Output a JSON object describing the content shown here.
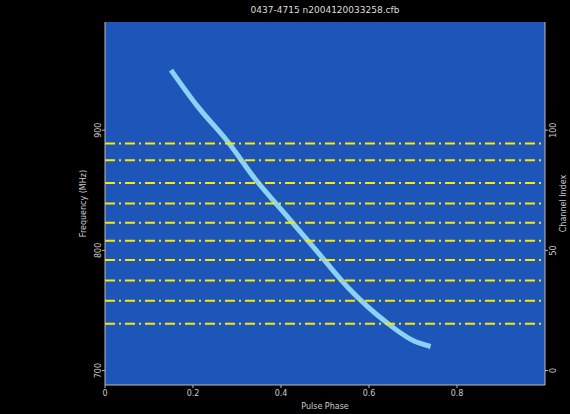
{
  "chart_data": {
    "type": "line",
    "title": "0437-4715 n2004120033258.cfb",
    "x_label": "Pulse Phase",
    "y_label": "Frequency (MHz)",
    "y2_label": "Channel Index",
    "x": [
      0.15,
      0.21,
      0.28,
      0.34,
      0.41,
      0.48,
      0.55,
      0.64,
      0.7,
      0.74
    ],
    "values": [
      950,
      920,
      890,
      860,
      830,
      800,
      770,
      740,
      725,
      720
    ],
    "color": "#9fe8ff",
    "xlim": [
      0,
      1
    ],
    "xticks": [
      0,
      0.2,
      0.4,
      0.6,
      0.8
    ],
    "ylim": [
      688,
      990
    ],
    "yticks": [
      700,
      800,
      900
    ],
    "y2lim": [
      -6,
      145
    ],
    "y2ticks": [
      0,
      50,
      100
    ],
    "grid": false,
    "reference_lines": {
      "values": [
        889,
        875,
        856,
        839,
        823,
        808,
        792,
        775,
        758,
        739
      ],
      "color": "#ffe600",
      "line_style": "dashdot"
    }
  }
}
